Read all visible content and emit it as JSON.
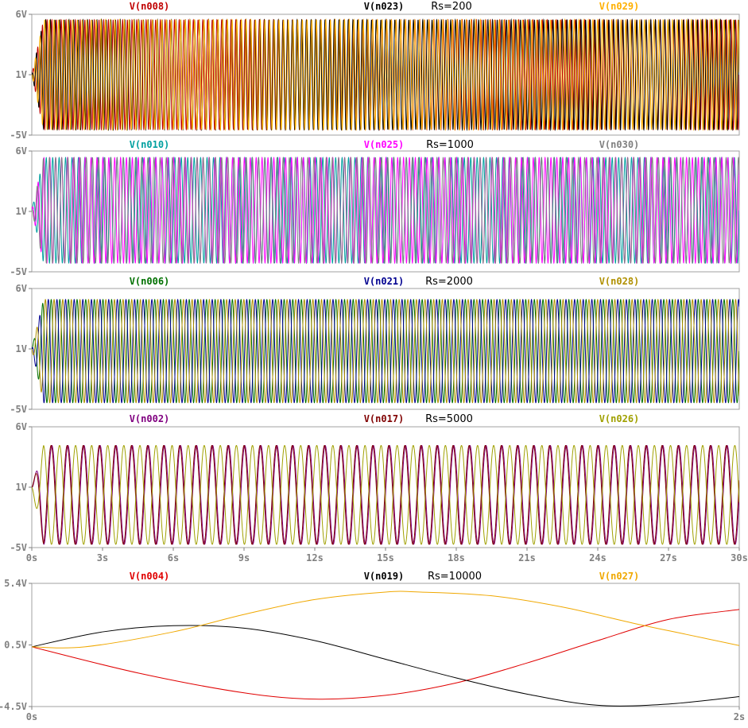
{
  "window": {
    "app": "LTspice waveform viewer"
  },
  "chart_data": [
    {
      "type": "line",
      "title": "Rs=200",
      "ylim": [
        -5,
        6
      ],
      "y_ticks": [
        "6V",
        "1V",
        "-5V"
      ],
      "x_range_s": [
        0,
        30
      ],
      "grid": false,
      "series": [
        {
          "name": "V(n008)",
          "color": "#c00000",
          "kind": "sine",
          "amplitude": 5.0,
          "offset": 0.5,
          "cycles": 150,
          "phase": 0.0,
          "start_value": 0.5
        },
        {
          "name": "V(n023)",
          "color": "#000000",
          "kind": "sine",
          "amplitude": 5.0,
          "offset": 0.5,
          "cycles": 152,
          "phase": 1.6,
          "start_value": 0.5
        },
        {
          "name": "V(n029)",
          "color": "#ffb000",
          "kind": "sine",
          "amplitude": 5.0,
          "offset": 0.5,
          "cycles": 151,
          "phase": 3.1,
          "start_value": 0.5
        }
      ]
    },
    {
      "type": "line",
      "title": "Rs=1000",
      "ylim": [
        -5,
        6
      ],
      "y_ticks": [
        "6V",
        "1V",
        "-5V"
      ],
      "x_range_s": [
        0,
        30
      ],
      "grid": false,
      "series": [
        {
          "name": "V(n010)",
          "color": "#00a0a0",
          "kind": "sine",
          "amplitude": 4.8,
          "offset": 0.6,
          "cycles": 110,
          "phase": 0.0,
          "start_value": 0.6
        },
        {
          "name": "V(n025)",
          "color": "#ff00ff",
          "kind": "sine",
          "amplitude": 4.8,
          "offset": 0.6,
          "cycles": 120,
          "phase": 1.2,
          "start_value": 0.6
        },
        {
          "name": "V(n030)",
          "color": "#808080",
          "kind": "sine",
          "amplitude": 4.8,
          "offset": 0.6,
          "cycles": 115,
          "phase": 2.4,
          "start_value": 0.6
        }
      ]
    },
    {
      "type": "line",
      "title": "Rs=2000",
      "ylim": [
        -5,
        6
      ],
      "y_ticks": [
        "6V",
        "1V",
        "-5V"
      ],
      "x_range_s": [
        0,
        30
      ],
      "grid": false,
      "series": [
        {
          "name": "V(n006)",
          "color": "#007000",
          "kind": "sine",
          "amplitude": 4.7,
          "offset": 0.3,
          "cycles": 82,
          "phase": 0.0,
          "start_value": 0.5
        },
        {
          "name": "V(n021)",
          "color": "#000090",
          "kind": "sine",
          "amplitude": 4.7,
          "offset": 0.3,
          "cycles": 82,
          "phase": 2.1,
          "start_value": 0.5
        },
        {
          "name": "V(n028)",
          "color": "#b09000",
          "kind": "sine",
          "amplitude": 4.7,
          "offset": 0.3,
          "cycles": 82,
          "phase": 4.2,
          "start_value": 0.5
        }
      ]
    },
    {
      "type": "line",
      "title": "Rs=5000",
      "ylim": [
        -5,
        6
      ],
      "y_ticks": [
        "6V",
        "1V",
        "-5V"
      ],
      "x_range": [
        0,
        30
      ],
      "x_ticks": [
        "0s",
        "3s",
        "6s",
        "9s",
        "12s",
        "15s",
        "18s",
        "21s",
        "24s",
        "27s",
        "30s"
      ],
      "grid": false,
      "series": [
        {
          "name": "V(n002)",
          "color": "#800080",
          "kind": "sine",
          "amplitude": 4.5,
          "offset": -0.2,
          "cycles": 44,
          "phase": 0.0,
          "start_value": 0.5
        },
        {
          "name": "V(n017)",
          "color": "#800000",
          "kind": "sine",
          "amplitude": 4.5,
          "offset": -0.2,
          "cycles": 44,
          "phase": 0.3,
          "start_value": 0.5
        },
        {
          "name": "V(n026)",
          "color": "#a0a000",
          "kind": "sine",
          "amplitude": 4.5,
          "offset": -0.2,
          "cycles": 44,
          "phase": 3.3,
          "start_value": 0.5
        }
      ]
    },
    {
      "type": "line",
      "title": "Rs=10000",
      "ylim": [
        -4.5,
        5.4
      ],
      "y_ticks": [
        "5.4V",
        "0.5V",
        "-4.5V"
      ],
      "x_range": [
        0,
        2
      ],
      "x_ticks": [
        "0s",
        "2s"
      ],
      "grid": false,
      "series": [
        {
          "name": "V(n004)",
          "color": "#e00000",
          "kind": "points",
          "x": [
            0,
            0.3,
            0.6,
            0.8,
            1.0,
            1.2,
            1.4,
            1.6,
            1.8,
            2.0
          ],
          "y": [
            0.3,
            -1.8,
            -3.4,
            -3.9,
            -3.6,
            -2.6,
            -1.0,
            0.8,
            2.5,
            3.3
          ]
        },
        {
          "name": "V(n019)",
          "color": "#000000",
          "kind": "points",
          "x": [
            0,
            0.2,
            0.4,
            0.6,
            0.8,
            1.0,
            1.2,
            1.4,
            1.6,
            1.8,
            2.0
          ],
          "y": [
            0.3,
            1.5,
            2.0,
            1.8,
            0.8,
            -0.7,
            -2.2,
            -3.5,
            -4.4,
            -4.3,
            -3.7
          ]
        },
        {
          "name": "V(n027)",
          "color": "#f0a800",
          "kind": "points",
          "x": [
            0,
            0.15,
            0.4,
            0.6,
            0.8,
            1.0,
            1.1,
            1.3,
            1.5,
            1.7,
            1.85,
            2.0
          ],
          "y": [
            0.3,
            0.3,
            1.5,
            2.9,
            4.1,
            4.7,
            4.7,
            4.4,
            3.5,
            2.2,
            1.3,
            0.4
          ]
        }
      ]
    }
  ]
}
